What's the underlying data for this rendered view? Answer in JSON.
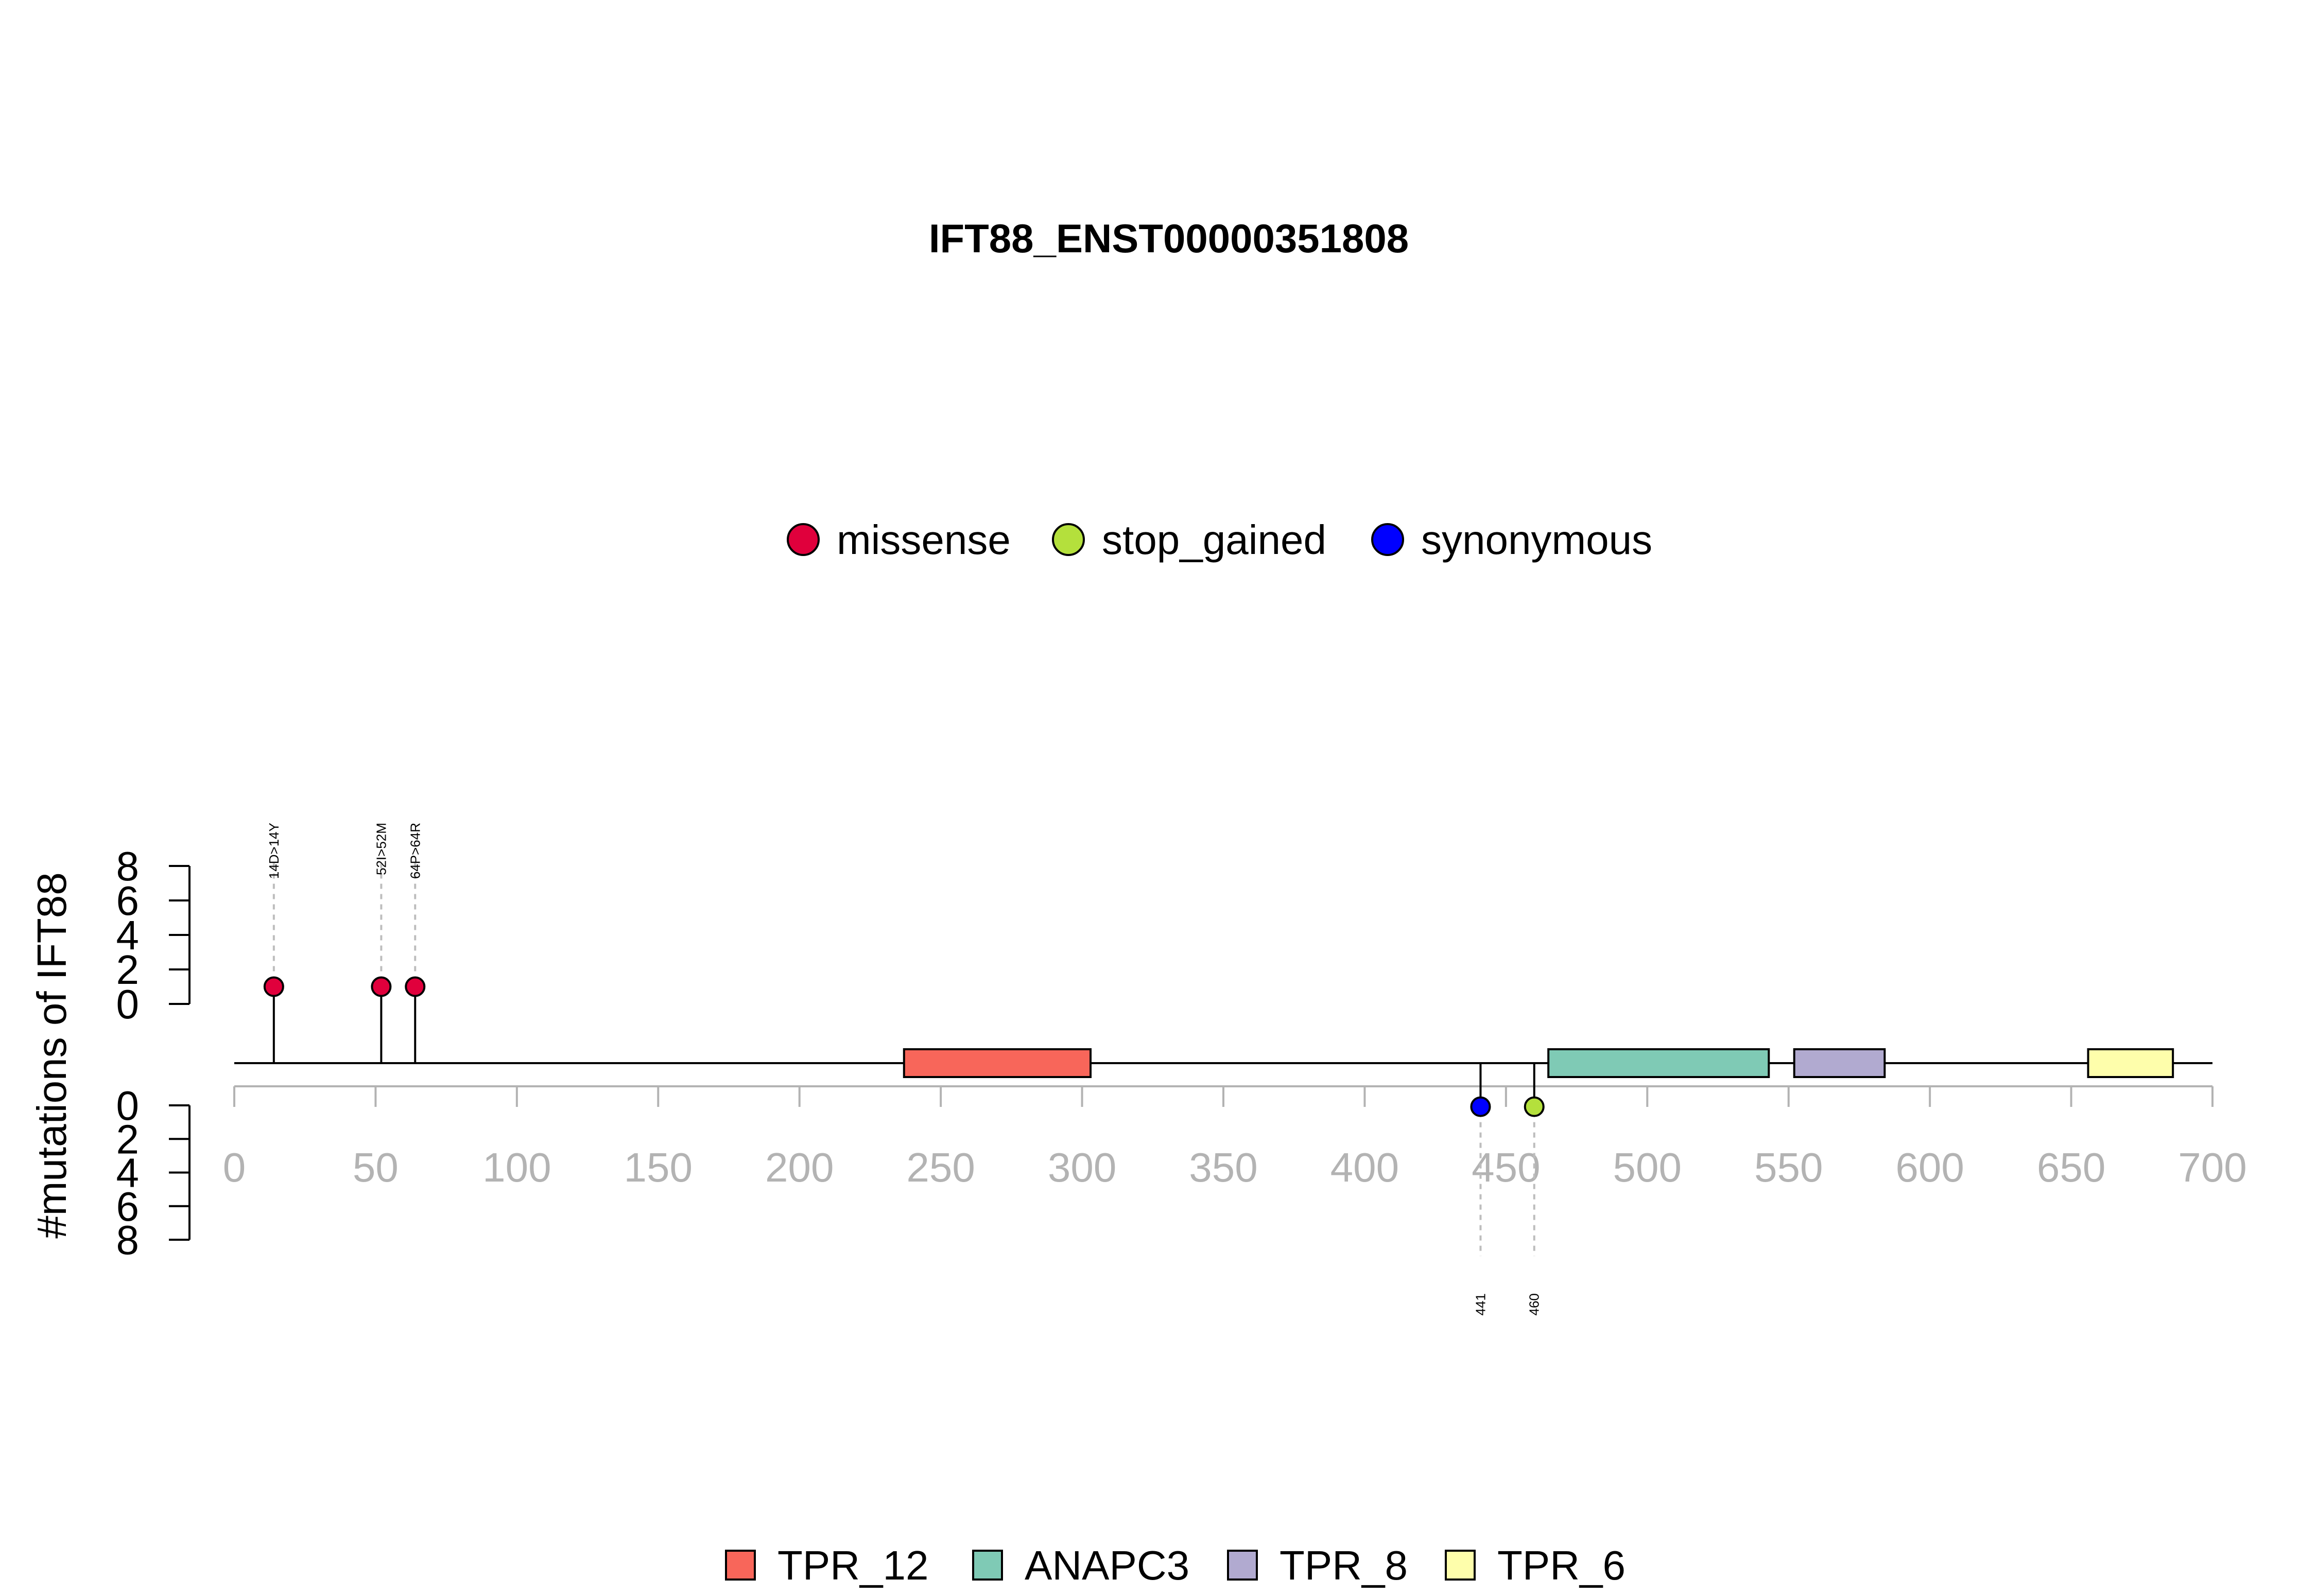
{
  "chart_data": {
    "type": "lollipop",
    "title": "IFT88_ENST00000351808",
    "ylabel": "#mutations of IFT88",
    "xlim": [
      0,
      700
    ],
    "x_ticks": [
      "0",
      "50",
      "100",
      "150",
      "200",
      "250",
      "300",
      "350",
      "400",
      "450",
      "500",
      "550",
      "600",
      "650",
      "700"
    ],
    "y_ticks": [
      "0",
      "2",
      "4",
      "6",
      "8"
    ],
    "ylim": [
      0,
      8
    ],
    "protein_length": 700,
    "mutation_legend": [
      {
        "name": "missense",
        "color": "#e0003c"
      },
      {
        "name": "stop_gained",
        "color": "#b4e03c"
      },
      {
        "name": "synonymous",
        "color": "#0000ff"
      }
    ],
    "mutations": [
      {
        "position": 14,
        "label": "14D>14Y",
        "count": 1,
        "type": "missense",
        "side": "top"
      },
      {
        "position": 52,
        "label": "52I>52M",
        "count": 1,
        "type": "missense",
        "side": "top"
      },
      {
        "position": 64,
        "label": "64P>64R",
        "count": 1,
        "type": "missense",
        "side": "top"
      },
      {
        "position": 441,
        "label": "441",
        "count": 1,
        "type": "synonymous",
        "side": "bottom"
      },
      {
        "position": 460,
        "label": "460",
        "count": 1,
        "type": "stop_gained",
        "side": "bottom"
      }
    ],
    "domains": [
      {
        "name": "TPR_12",
        "start": 237,
        "end": 303,
        "color": "#f8665a"
      },
      {
        "name": "ANAPC3",
        "start": 465,
        "end": 543,
        "color": "#7fcab5"
      },
      {
        "name": "TPR_8",
        "start": 552,
        "end": 584,
        "color": "#b1aad0"
      },
      {
        "name": "TPR_6",
        "start": 656,
        "end": 686,
        "color": "#fefeab"
      }
    ]
  }
}
